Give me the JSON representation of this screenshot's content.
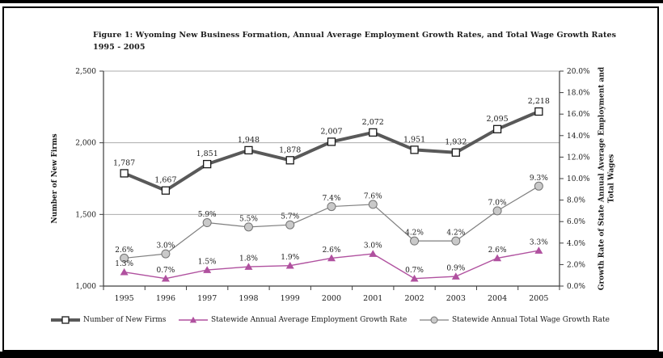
{
  "figure": {
    "title_line1": "Figure 1: Wyoming New Business Formation, Annual Average Employment Growth Rates, and Total Wage Growth Rates",
    "title_line2": "1995 - 2005"
  },
  "chart_data": {
    "type": "line",
    "title": "Figure 1: Wyoming New Business Formation, Annual Average Employment Growth Rates, and Total Wage Growth Rates 1995 - 2005",
    "categories": [
      "1995",
      "1996",
      "1997",
      "1998",
      "1999",
      "2000",
      "2001",
      "2002",
      "2003",
      "2004",
      "2005"
    ],
    "series": [
      {
        "name": "Number of New Firms",
        "axis": "left",
        "marker": "square",
        "color": "#595959",
        "marker_fill": "#ffffff",
        "marker_stroke": "#1a1a1a",
        "line_width": 4,
        "values": [
          1787,
          1667,
          1851,
          1948,
          1878,
          2007,
          2072,
          1951,
          1932,
          2095,
          2218
        ],
        "labels": [
          "1,787",
          "1,667",
          "1,851",
          "1,948",
          "1,878",
          "2,007",
          "2,072",
          "1,951",
          "1,932",
          "2,095",
          "2,218"
        ]
      },
      {
        "name": "Statewide Annual Average Employment Growth Rate",
        "axis": "right",
        "marker": "triangle",
        "color": "#b0519f",
        "marker_fill": "#b0519f",
        "marker_stroke": "#b0519f",
        "line_width": 1.4,
        "values": [
          1.3,
          0.7,
          1.5,
          1.8,
          1.9,
          2.6,
          3.0,
          0.7,
          0.9,
          2.6,
          3.3
        ],
        "labels": [
          "1.3%",
          "0.7%",
          "1.5%",
          "1.8%",
          "1.9%",
          "2.6%",
          "3.0%",
          "0.7%",
          "0.9%",
          "2.6%",
          "3.3%"
        ]
      },
      {
        "name": "Statewide Annual Total Wage Growth Rate",
        "axis": "right",
        "marker": "circle",
        "color": "#7f7f7f",
        "marker_fill": "#c9c9c9",
        "marker_stroke": "#737373",
        "line_width": 1.2,
        "values": [
          2.6,
          3.0,
          5.9,
          5.5,
          5.7,
          7.4,
          7.6,
          4.2,
          4.2,
          7.0,
          9.3
        ],
        "labels": [
          "2.6%",
          "3.0%",
          "5.9%",
          "5.5%",
          "5.7%",
          "7.4%",
          "7.6%",
          "4.2%",
          "4.2%",
          "7.0%",
          "9.3%"
        ]
      }
    ],
    "left_axis": {
      "label": "Number of New Firms",
      "min": 1000,
      "max": 2500,
      "step": 500,
      "tick_labels": [
        "1,000",
        "1,500",
        "2,000",
        "2,500"
      ]
    },
    "right_axis": {
      "label_line1": "Growth Rate of State Annual Average Employment and",
      "label_line2": "Total Wages",
      "min": 0,
      "max": 20,
      "step": 2,
      "tick_labels": [
        "0.0%",
        "2.0%",
        "4.0%",
        "6.0%",
        "8.0%",
        "10.0%",
        "12.0%",
        "14.0%",
        "16.0%",
        "18.0%",
        "20.0%"
      ]
    },
    "grid": "horizontal-left-axis-steps",
    "legend_position": "bottom",
    "appearance": {
      "gridline_color": "#ababab",
      "axis_color": "#3d3d3d",
      "text_color": "#1a1a1a"
    }
  }
}
